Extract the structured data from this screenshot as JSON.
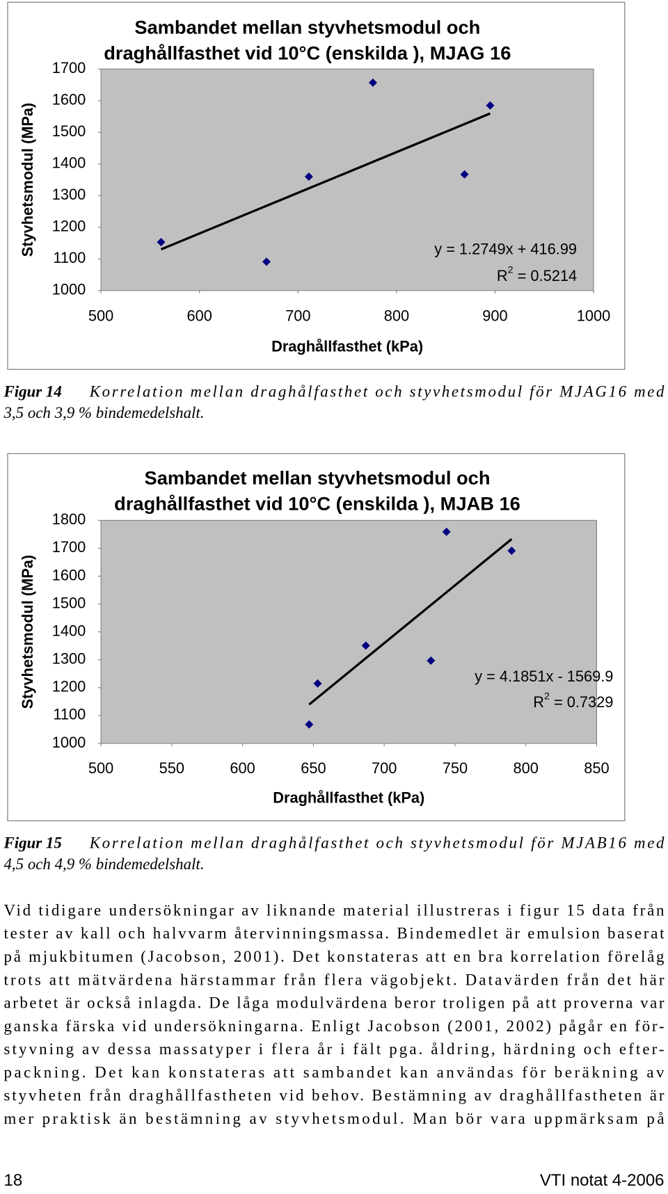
{
  "chart_data": [
    {
      "type": "scatter",
      "title": [
        "Sambandet mellan styvhetsmodul och",
        "draghållfasthet vid 10°C (enskilda ), MJAG 16"
      ],
      "x_label": "Draghållfasthet (kPa)",
      "y_label": "Styvhetsmodul (MPa)",
      "x": [
        561,
        668,
        711,
        776,
        869,
        895
      ],
      "values": [
        1153,
        1091,
        1360,
        1657,
        1367,
        1585
      ],
      "color": "#000080",
      "xlim": [
        500,
        1000
      ],
      "xticks": [
        500,
        600,
        700,
        800,
        900,
        1000
      ],
      "ylim": [
        1000,
        1700
      ],
      "yticks": [
        1000,
        1100,
        1200,
        1300,
        1400,
        1500,
        1600,
        1700
      ],
      "trendline": {
        "equation": "y = 1.2749x + 416.99",
        "r2": {
          "base": "R",
          "sup": "2",
          "rest": " = 0.5214"
        }
      }
    },
    {
      "type": "scatter",
      "title": [
        "Sambandet mellan styvhetsmodul och",
        "draghållfasthet vid 10°C (enskilda ), MJAB 16"
      ],
      "x_label": "Draghållfasthet (kPa)",
      "y_label": "Styvhetsmodul (MPa)",
      "x": [
        647,
        653,
        687,
        733,
        744,
        790
      ],
      "values": [
        1068,
        1215,
        1351,
        1297,
        1759,
        1691
      ],
      "color": "#000080",
      "xlim": [
        500,
        850
      ],
      "xticks": [
        500,
        550,
        600,
        650,
        700,
        750,
        800,
        850
      ],
      "ylim": [
        1000,
        1800
      ],
      "yticks": [
        1000,
        1100,
        1200,
        1300,
        1400,
        1500,
        1600,
        1700,
        1800
      ],
      "trendline": {
        "equation": "y = 4.1851x - 1569.9",
        "r2": {
          "base": "R",
          "sup": "2",
          "rest": " = 0.7329"
        }
      }
    }
  ],
  "captions": [
    {
      "label": "Figur 14",
      "lines": [
        "Korrelation mellan draghålfasthet och styvhetsmodul för MJAG16 med",
        "3,5 och 3,9 % bindemedelshalt."
      ]
    },
    {
      "label": "Figur 15",
      "lines": [
        "Korrelation mellan draghålfasthet och styvhetsmodul för MJAB16 med",
        "4,5 och 4,9 % bindemedelshalt."
      ]
    }
  ],
  "paragraph": [
    "Vid tidigare undersökningar av liknande material illustreras i figur 15 data från",
    "tester av kall och halvvarm återvinningsmassa. Bindemedlet är emulsion baserat",
    "på mjukbitumen (Jacobson, 2001). Det konstateras att en bra korrelation förelåg",
    "trots att mätvärdena härstammar från flera vägobjekt. Datavärden från det här",
    "arbetet är också inlagda. De låga modulvärdena beror troligen på att proverna var",
    "ganska färska vid undersökningarna. Enligt Jacobson (2001, 2002) pågår en för-",
    "styvning av dessa massatyper i flera år i fält pga. åldring, härdning och efter-",
    "packning. Det kan konstateras att sambandet kan användas för beräkning av",
    "styvheten från draghållfastheten vid behov. Bestämning av draghållfastheten är",
    "mer praktisk än bestämning av styvhetsmodul. Man bör vara uppmärksam på"
  ],
  "footer": {
    "page": "18",
    "doc": "VTI notat 4-2006"
  }
}
